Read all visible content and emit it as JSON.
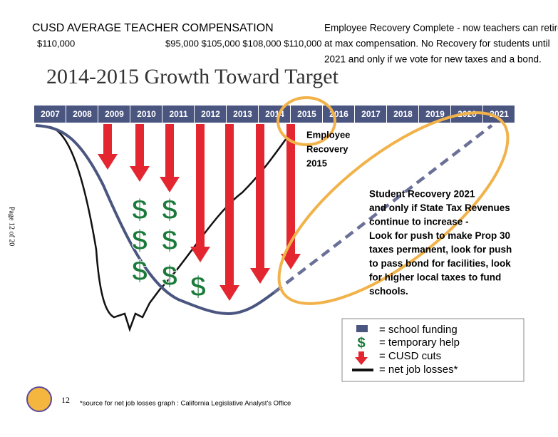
{
  "header": {
    "title": "CUSD AVERAGE TEACHER COMPENSATION",
    "first_value": "$110,000",
    "values": "$95,000 $105,000 $108,000 $110,000",
    "note": [
      "Employee Recovery Complete - now teachers can retire",
      "at max compensation. No Recovery for students until",
      "2021 and only if we vote for new taxes and a bond."
    ]
  },
  "title": "2014-2015 Growth Toward Target",
  "years": [
    "2007",
    "2008",
    "2009",
    "2010",
    "2011",
    "2012",
    "2013",
    "2014",
    "2015",
    "2016",
    "2017",
    "2018",
    "2019",
    "2020",
    "2021"
  ],
  "dollar_symbol": "$",
  "employee_recovery": [
    "Employee",
    "Recovery",
    "2015"
  ],
  "student_recovery": [
    "Student  Recovery 2021",
    "and only if State Tax Revenues",
    "continue to increase -",
    "Look for push to make Prop 30",
    "taxes permanent, look for push",
    "to pass bond for facilities, look",
    "for higher local taxes to fund",
    "schools."
  ],
  "legend": [
    "= school funding",
    "= temporary help",
    "= CUSD cuts",
    "= net job losses*"
  ],
  "page_label": "Page 12 of 20",
  "page_number": "12",
  "footnote": "*source for net job losses graph : California Legislative Analyst's Office"
}
